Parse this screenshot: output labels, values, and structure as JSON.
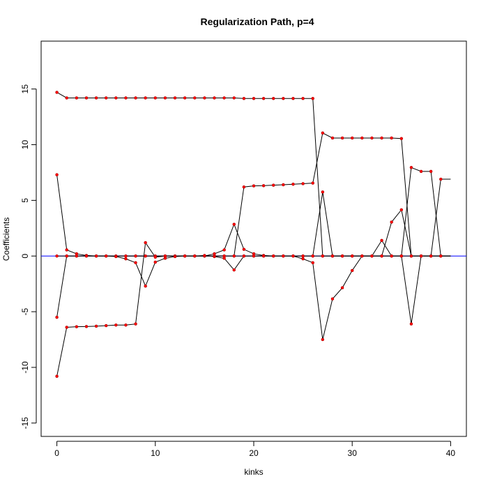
{
  "chart_data": {
    "type": "line",
    "title": "Regularization Path, p=4",
    "xlabel": "kinks",
    "ylabel": "Coefficients",
    "xlim": [
      -1.6,
      41.6
    ],
    "ylim": [
      -16.2,
      19.3
    ],
    "x_ticks": [
      0,
      10,
      20,
      30,
      40
    ],
    "y_ticks": [
      -15,
      -10,
      -5,
      0,
      5,
      10,
      15
    ],
    "grid": false,
    "legend": "none",
    "reference_line": {
      "y": 0,
      "color": "#0000ff"
    },
    "line_color": "#000000",
    "point_color": "#ff0000",
    "x": [
      0,
      1,
      2,
      3,
      4,
      5,
      6,
      7,
      8,
      9,
      10,
      11,
      12,
      13,
      14,
      15,
      16,
      17,
      18,
      19,
      20,
      21,
      22,
      23,
      24,
      25,
      26,
      27,
      28,
      29,
      30,
      31,
      32,
      33,
      34,
      35,
      36,
      37,
      38,
      39,
      40
    ],
    "series": [
      {
        "values": [
          14.7,
          14.2,
          14.2,
          14.2,
          14.2,
          14.2,
          14.2,
          14.2,
          14.2,
          14.2,
          14.2,
          14.2,
          14.2,
          14.2,
          14.2,
          14.2,
          14.2,
          14.2,
          14.2,
          14.15,
          14.15,
          14.15,
          14.15,
          14.15,
          14.15,
          14.15,
          14.15,
          0,
          0,
          0,
          0,
          0,
          0,
          0,
          0,
          0,
          0,
          0,
          0,
          0,
          0
        ]
      },
      {
        "values": [
          7.3,
          0.55,
          0.2,
          0.05,
          0,
          0,
          0,
          0,
          0,
          0,
          0,
          0,
          0,
          0,
          0,
          0,
          0,
          0,
          0,
          6.2,
          6.3,
          6.32,
          6.36,
          6.4,
          6.45,
          6.5,
          6.55,
          11.05,
          10.6,
          10.6,
          10.6,
          10.6,
          10.6,
          10.6,
          10.6,
          10.55,
          0,
          0,
          0,
          0,
          0
        ]
      },
      {
        "values": [
          -5.5,
          0,
          0,
          0,
          0,
          0,
          0,
          0,
          0,
          0,
          0,
          0,
          0,
          0,
          0,
          0,
          0,
          0,
          0,
          0,
          0,
          0,
          0,
          0,
          0,
          0,
          0,
          0,
          0,
          0,
          0,
          0,
          0,
          0,
          0,
          0,
          7.95,
          7.6,
          7.6,
          0,
          0
        ]
      },
      {
        "values": [
          -10.8,
          -6.4,
          -6.35,
          -6.33,
          -6.3,
          -6.25,
          -6.2,
          -6.2,
          -6.1,
          1.2,
          -0.1,
          0,
          0,
          0,
          0,
          0,
          0.2,
          0.55,
          2.85,
          0.6,
          0.2,
          0.05,
          0,
          0,
          0,
          -0.25,
          -0.6,
          -7.5,
          -3.85,
          -2.85,
          -1.3,
          0,
          0,
          1.4,
          0,
          0,
          -6.1,
          0,
          0,
          6.9,
          6.9
        ]
      },
      {
        "values": [
          0,
          0,
          0,
          0,
          0,
          0,
          -0.05,
          -0.25,
          -0.6,
          -2.7,
          -0.55,
          -0.2,
          -0.05,
          0,
          0,
          0.05,
          -0.05,
          -0.2,
          -1.25,
          0,
          0,
          0,
          0,
          0,
          0,
          0,
          0,
          5.75,
          0,
          0,
          0,
          0,
          0,
          0,
          3.05,
          4.15,
          0,
          0,
          0,
          0,
          0
        ]
      }
    ]
  }
}
